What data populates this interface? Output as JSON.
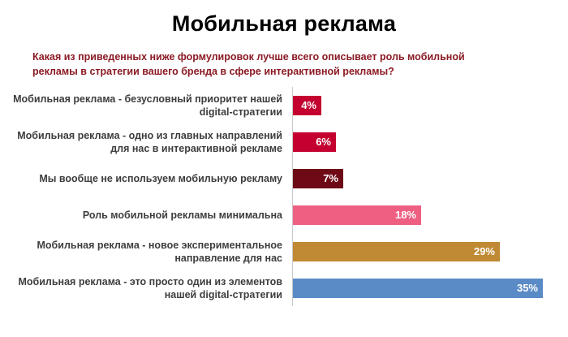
{
  "title": "Мобильная реклама",
  "subtitle": "Какая из приведенных ниже формулировок лучше всего описывает роль мобильной рекламы в стратегии вашего бренда в сфере интерактивной рекламы?",
  "chart_data": {
    "type": "bar",
    "orientation": "horizontal",
    "title": "Мобильная реклама",
    "xlabel": "",
    "ylabel": "",
    "unit": "%",
    "xlim": [
      0,
      35
    ],
    "grid": false,
    "legend": "none",
    "categories": [
      "Мобильная реклама - безусловный приоритет нашей digital-стратегии",
      "Мобильная реклама - одно из главных направлений для нас в интерактивной рекламе",
      "Мы вообще не используем мобильную рекламу",
      "Роль мобильной рекламы минимальна",
      "Мобильная реклама - новое экспериментальное направление для нас",
      "Мобильная реклама - это просто один из элементов нашей digital-стратегии"
    ],
    "values": [
      4,
      6,
      7,
      18,
      29,
      35
    ],
    "value_labels": [
      "4%",
      "6%",
      "7%",
      "18%",
      "29%",
      "35%"
    ],
    "colors": [
      "#c3002f",
      "#c3002f",
      "#6e0a16",
      "#ef5f82",
      "#bf8a33",
      "#5b8bc7"
    ]
  }
}
